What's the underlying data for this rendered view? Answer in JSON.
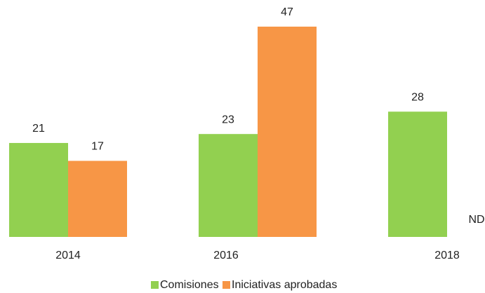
{
  "chart_data": {
    "type": "bar",
    "categories": [
      "2014",
      "2016",
      "2018"
    ],
    "series": [
      {
        "name": "Comisiones",
        "color": "#92d050",
        "values": [
          21,
          23,
          28
        ]
      },
      {
        "name": "Iniciativas aprobadas",
        "color": "#f79646",
        "values": [
          17,
          47,
          null
        ],
        "value_labels": [
          "17",
          "47",
          "ND"
        ]
      }
    ]
  }
}
